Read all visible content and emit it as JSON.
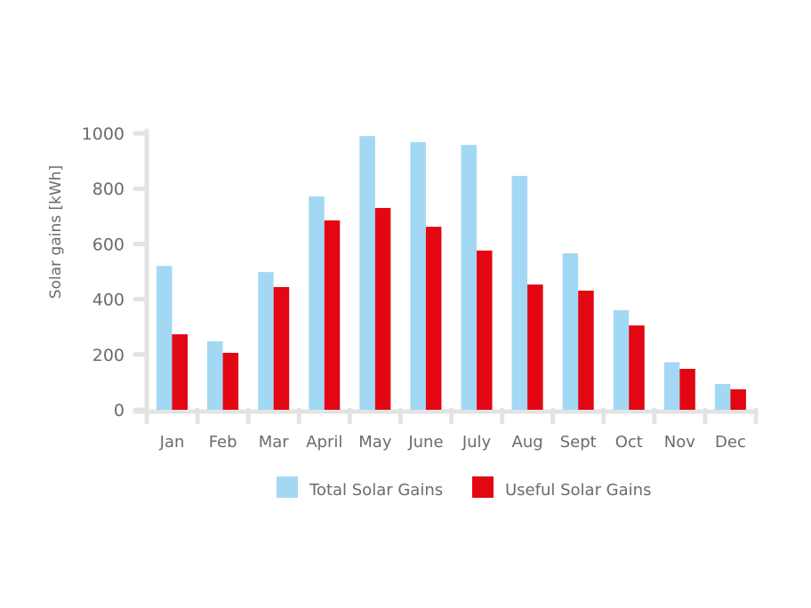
{
  "chart_data": {
    "type": "bar",
    "title": "",
    "xlabel": "",
    "ylabel": "Solar gains [kWh]",
    "ylim": [
      0,
      1000
    ],
    "yticks": [
      0,
      200,
      400,
      600,
      800,
      1000
    ],
    "grid": false,
    "legend_position": "bottom",
    "categories": [
      "Jan",
      "Feb",
      "Mar",
      "April",
      "May",
      "June",
      "July",
      "Aug",
      "Sept",
      "Oct",
      "Nov",
      "Dec"
    ],
    "series": [
      {
        "name": "Total Solar Gains",
        "color": "#a3d8f4",
        "values": [
          520,
          248,
          498,
          772,
          990,
          968,
          958,
          846,
          566,
          360,
          172,
          93
        ]
      },
      {
        "name": "Useful Solar Gains",
        "color": "#e30613",
        "values": [
          273,
          206,
          444,
          685,
          730,
          662,
          576,
          453,
          431,
          305,
          148,
          74
        ]
      }
    ]
  }
}
